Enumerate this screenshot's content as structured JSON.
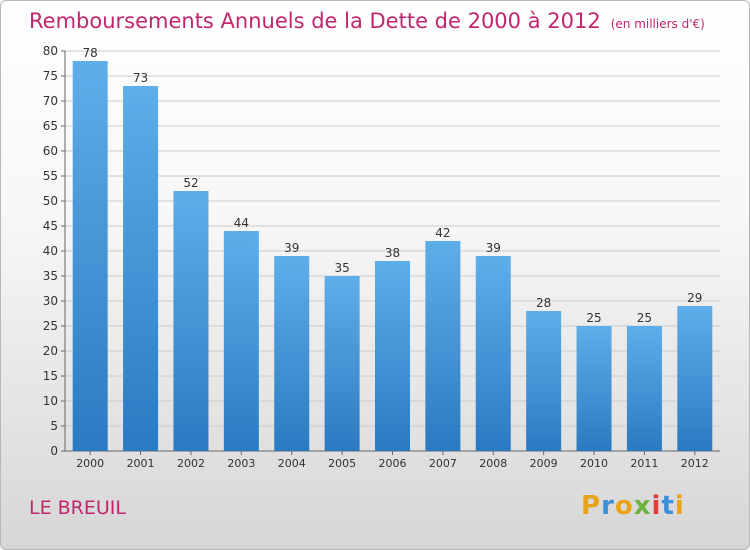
{
  "header": {
    "title": "Remboursements Annuels de la Dette de 2000 à 2012",
    "subtitle": "(en milliers d'€)"
  },
  "footer": {
    "city": "LE BREUIL",
    "logo": "Proxiti",
    "logo_colors": [
      "#e8a21c",
      "#3a8fd6",
      "#e8a21c",
      "#6db33f",
      "#e23b3b",
      "#3a8fd6",
      "#e8a21c"
    ]
  },
  "colors": {
    "title": "#c0266e",
    "bar_top": "#5eaeea",
    "bar_bottom": "#2a7ac2",
    "grid": "#cccccc",
    "axis": "#666666",
    "text": "#333333"
  },
  "chart_data": {
    "type": "bar",
    "title": "Remboursements Annuels de la Dette de 2000 à 2012",
    "subtitle": "(en milliers d'€)",
    "categories": [
      "2000",
      "2001",
      "2002",
      "2003",
      "2004",
      "2005",
      "2006",
      "2007",
      "2008",
      "2009",
      "2010",
      "2011",
      "2012"
    ],
    "values": [
      78,
      73,
      52,
      44,
      39,
      35,
      38,
      42,
      39,
      28,
      25,
      25,
      29
    ],
    "ylim": [
      0,
      80
    ],
    "yticks": [
      0,
      5,
      10,
      15,
      20,
      25,
      30,
      35,
      40,
      45,
      50,
      55,
      60,
      65,
      70,
      75,
      80
    ],
    "grid": true,
    "xlabel": "",
    "ylabel": ""
  }
}
